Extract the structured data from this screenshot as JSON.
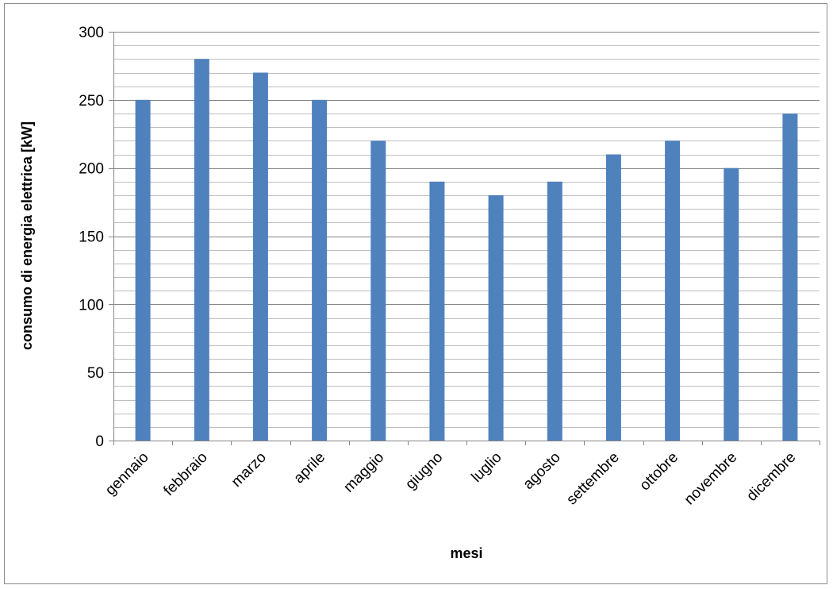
{
  "chart_data": {
    "type": "bar",
    "title": "",
    "xlabel": "mesi",
    "ylabel": "consumo di energia elettrica [kW]",
    "ylim": [
      0,
      300
    ],
    "yticks": [
      0,
      50,
      100,
      150,
      200,
      250,
      300
    ],
    "ytick_labels": [
      "0",
      "50",
      "100",
      "150",
      "200",
      "250",
      "300"
    ],
    "minor_grid_step": 10,
    "grid": true,
    "legend": "none",
    "categories": [
      "gennaio",
      "febbraio",
      "marzo",
      "aprile",
      "maggio",
      "giugno",
      "luglio",
      "agosto",
      "settembre",
      "ottobre",
      "novembre",
      "dicembre"
    ],
    "values": [
      250,
      280,
      270,
      250,
      220,
      190,
      180,
      190,
      210,
      220,
      200,
      240
    ],
    "colors": {
      "bar": "#4f81bd",
      "major_grid": "#868686",
      "minor_grid": "#bfbfbf",
      "axis": "#868686",
      "border": "#8c8c8c"
    }
  }
}
